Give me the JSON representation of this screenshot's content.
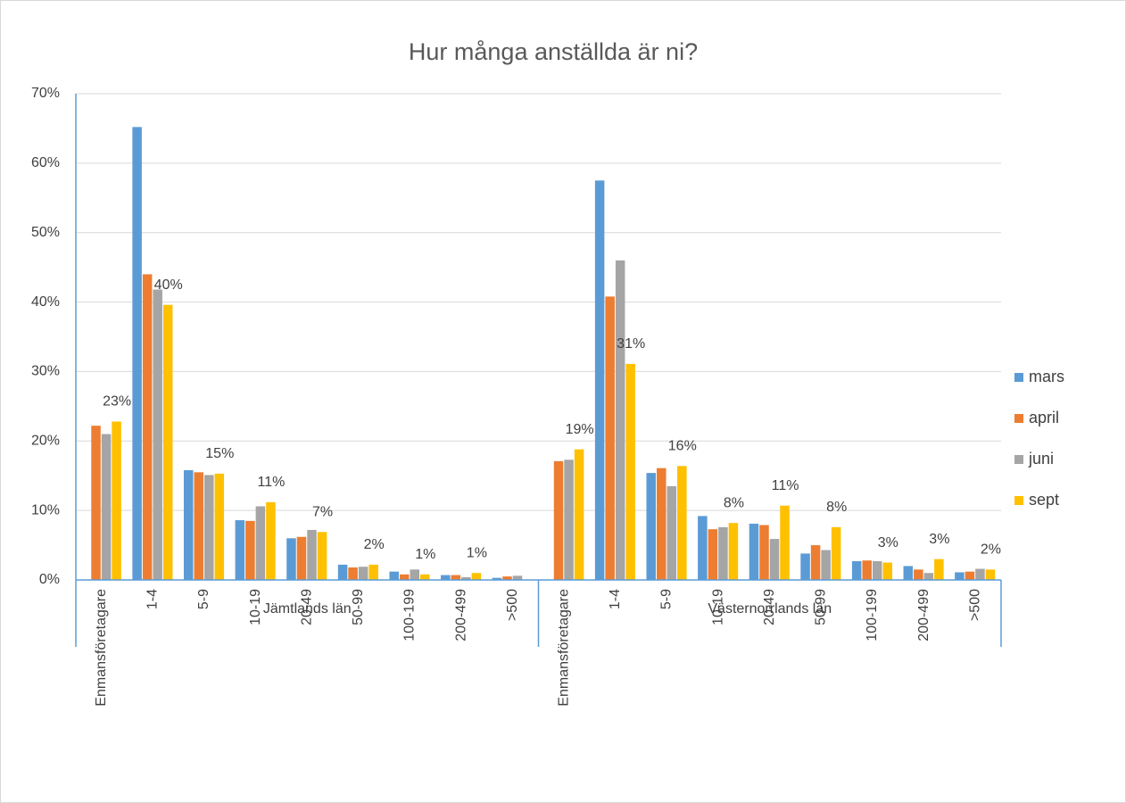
{
  "chart_data": {
    "type": "bar",
    "title": "Hur många anställda är ni?",
    "category_groups": [
      "Jämtlands län",
      "Västernorrlands län"
    ],
    "categories": [
      "Enmansföretagare",
      "1-4",
      "5-9",
      "10-19",
      "20-49",
      "50-99",
      "100-199",
      "200-499",
      ">500",
      "Enmansföretagare",
      "1-4",
      "5-9",
      "10-19",
      "20-49",
      "50-99",
      "100-199",
      "200-499",
      ">500"
    ],
    "series": [
      {
        "name": "mars",
        "color": "#5b9bd5",
        "values": [
          null,
          65.2,
          15.8,
          8.6,
          6.0,
          2.2,
          1.2,
          0.7,
          0.3,
          null,
          57.5,
          15.4,
          9.2,
          8.1,
          3.8,
          2.7,
          2.0,
          1.1
        ]
      },
      {
        "name": "april",
        "color": "#ed7d31",
        "values": [
          22.2,
          44.0,
          15.5,
          8.5,
          6.2,
          1.8,
          0.8,
          0.7,
          0.5,
          17.1,
          40.8,
          16.1,
          7.3,
          7.9,
          5.0,
          2.8,
          1.5,
          1.2
        ]
      },
      {
        "name": "juni",
        "color": "#a5a5a5",
        "values": [
          21.0,
          41.8,
          15.1,
          10.6,
          7.2,
          1.9,
          1.5,
          0.4,
          0.6,
          17.3,
          46.0,
          13.5,
          7.6,
          5.9,
          4.3,
          2.7,
          1.0,
          1.6
        ]
      },
      {
        "name": "sept",
        "color": "#ffc000",
        "values": [
          22.8,
          39.6,
          15.3,
          11.2,
          6.9,
          2.2,
          0.8,
          1.0,
          0,
          18.8,
          31.1,
          16.4,
          8.2,
          10.7,
          7.6,
          2.5,
          3.0,
          1.5
        ],
        "value_labels": [
          "23%",
          "40%",
          "15%",
          "11%",
          "7%",
          "2%",
          "1%",
          "1%",
          null,
          "19%",
          "31%",
          "16%",
          "8%",
          "11%",
          "8%",
          "3%",
          "3%",
          "2%"
        ]
      }
    ],
    "ylim": [
      0,
      70
    ],
    "yticks": [
      {
        "value": 0,
        "label": "0%"
      },
      {
        "value": 10,
        "label": "10%"
      },
      {
        "value": 20,
        "label": "20%"
      },
      {
        "value": 30,
        "label": "30%"
      },
      {
        "value": 40,
        "label": "40%"
      },
      {
        "value": 50,
        "label": "50%"
      },
      {
        "value": 60,
        "label": "60%"
      },
      {
        "value": 70,
        "label": "70%"
      }
    ],
    "grid": true,
    "legend": "right"
  }
}
